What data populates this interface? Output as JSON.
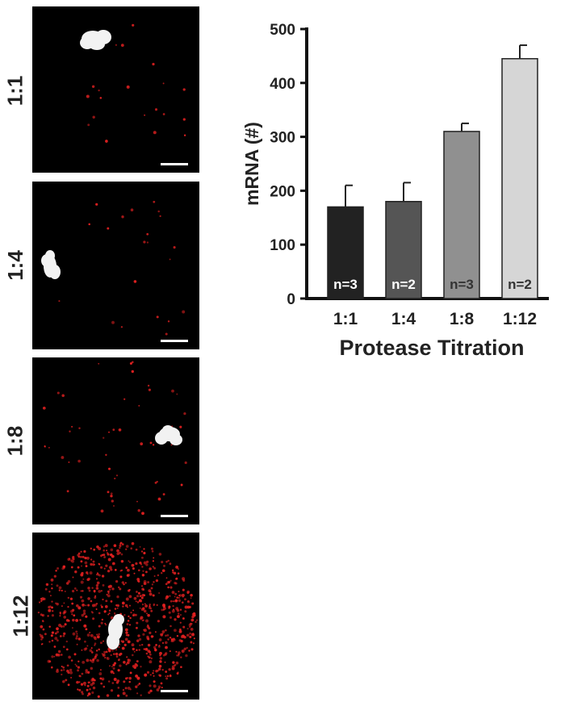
{
  "panels": [
    {
      "label": "1:1",
      "relative_density": 0.15
    },
    {
      "label": "1:4",
      "relative_density": 0.16
    },
    {
      "label": "1:8",
      "relative_density": 0.38
    },
    {
      "label": "1:12",
      "relative_density": 1.0
    }
  ],
  "colors": {
    "image_background": "#000000",
    "spot_color": "#e02020",
    "nucleus_color": "#f2f2f2",
    "scale_bar_color": "#ffffff"
  },
  "chart_data": {
    "type": "bar",
    "categories": [
      "1:1",
      "1:4",
      "1:8",
      "1:12"
    ],
    "values": [
      170,
      180,
      310,
      445
    ],
    "errors": [
      40,
      35,
      15,
      25
    ],
    "bar_labels": [
      "n=3",
      "n=2",
      "n=3",
      "n=2"
    ],
    "bar_colors": [
      "#222222",
      "#555555",
      "#909090",
      "#d6d6d6"
    ],
    "bar_label_colors": [
      "#ffffff",
      "#ffffff",
      "#333333",
      "#333333"
    ],
    "title": "",
    "xlabel": "Protease Titration",
    "ylabel": "mRNA (#)",
    "ylim": [
      0,
      500
    ],
    "yticks": [
      0,
      100,
      200,
      300,
      400,
      500
    ],
    "grid": false,
    "legend": "none"
  }
}
